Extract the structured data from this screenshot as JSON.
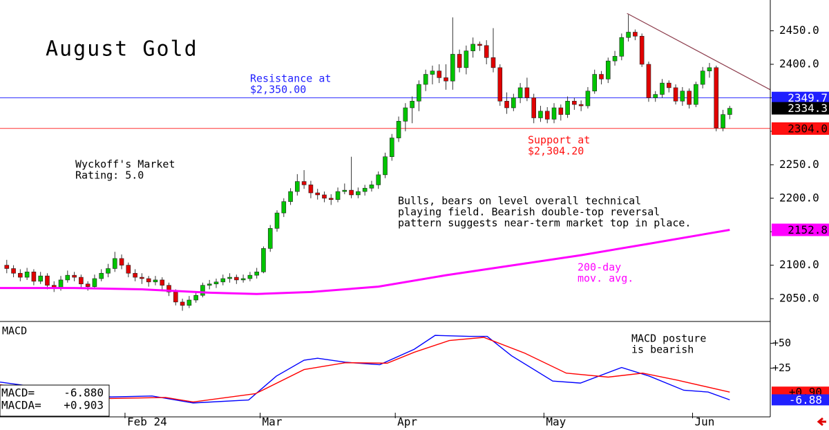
{
  "chart_data": {
    "type": "candlestick",
    "title": "August Gold",
    "xlim": [
      -1,
      113
    ],
    "xticks": [
      {
        "value": 17.5,
        "label": "Feb 24"
      },
      {
        "value": 37.5,
        "label": "Mar"
      },
      {
        "value": 57.5,
        "label": "Apr"
      },
      {
        "value": 79.5,
        "label": "May"
      },
      {
        "value": 101.5,
        "label": "Jun"
      }
    ],
    "ylim": [
      2016,
      2496
    ],
    "yticks": [
      {
        "value": 2050,
        "label": "2050.0"
      },
      {
        "value": 2100,
        "label": "2100.0"
      },
      {
        "value": 2150,
        "label": "2150.0"
      },
      {
        "value": 2200,
        "label": "2200.0"
      },
      {
        "value": 2250,
        "label": "2250.0"
      },
      {
        "value": 2300,
        "label": "2300.0"
      },
      {
        "value": 2350,
        "label": "2350.0"
      },
      {
        "value": 2400,
        "label": "2400.0"
      },
      {
        "value": 2450,
        "label": "2450.0"
      }
    ],
    "up_color": "#00c400",
    "down_color": "#e00000",
    "ohlc": [
      [
        2100,
        2108,
        2088,
        2095
      ],
      [
        2095,
        2100,
        2082,
        2088
      ],
      [
        2088,
        2094,
        2076,
        2082
      ],
      [
        2082,
        2096,
        2078,
        2090
      ],
      [
        2090,
        2094,
        2070,
        2076
      ],
      [
        2076,
        2090,
        2072,
        2084
      ],
      [
        2084,
        2088,
        2064,
        2070
      ],
      [
        2070,
        2076,
        2060,
        2065
      ],
      [
        2065,
        2084,
        2062,
        2078
      ],
      [
        2078,
        2092,
        2074,
        2085
      ],
      [
        2085,
        2090,
        2076,
        2082
      ],
      [
        2082,
        2086,
        2066,
        2072
      ],
      [
        2072,
        2076,
        2062,
        2068
      ],
      [
        2068,
        2086,
        2064,
        2080
      ],
      [
        2080,
        2094,
        2076,
        2088
      ],
      [
        2088,
        2102,
        2082,
        2095
      ],
      [
        2095,
        2120,
        2090,
        2110
      ],
      [
        2110,
        2116,
        2094,
        2100
      ],
      [
        2100,
        2104,
        2082,
        2088
      ],
      [
        2088,
        2094,
        2076,
        2082
      ],
      [
        2082,
        2088,
        2072,
        2080
      ],
      [
        2080,
        2084,
        2068,
        2075
      ],
      [
        2075,
        2084,
        2070,
        2078
      ],
      [
        2078,
        2082,
        2064,
        2070
      ],
      [
        2070,
        2074,
        2054,
        2060
      ],
      [
        2060,
        2064,
        2040,
        2045
      ],
      [
        2045,
        2050,
        2032,
        2040
      ],
      [
        2040,
        2054,
        2036,
        2048
      ],
      [
        2048,
        2060,
        2044,
        2055
      ],
      [
        2055,
        2074,
        2052,
        2070
      ],
      [
        2070,
        2078,
        2064,
        2072
      ],
      [
        2072,
        2080,
        2066,
        2075
      ],
      [
        2075,
        2086,
        2070,
        2080
      ],
      [
        2080,
        2088,
        2074,
        2082
      ],
      [
        2082,
        2086,
        2072,
        2078
      ],
      [
        2078,
        2086,
        2074,
        2080
      ],
      [
        2080,
        2090,
        2076,
        2085
      ],
      [
        2085,
        2096,
        2080,
        2090
      ],
      [
        2090,
        2128,
        2088,
        2125
      ],
      [
        2125,
        2160,
        2120,
        2155
      ],
      [
        2155,
        2182,
        2150,
        2178
      ],
      [
        2178,
        2200,
        2172,
        2195
      ],
      [
        2195,
        2215,
        2190,
        2210
      ],
      [
        2210,
        2236,
        2204,
        2225
      ],
      [
        2225,
        2242,
        2214,
        2220
      ],
      [
        2220,
        2226,
        2200,
        2208
      ],
      [
        2208,
        2214,
        2198,
        2205
      ],
      [
        2205,
        2210,
        2194,
        2200
      ],
      [
        2200,
        2206,
        2190,
        2198
      ],
      [
        2198,
        2216,
        2194,
        2210
      ],
      [
        2210,
        2222,
        2206,
        2212
      ],
      [
        2212,
        2262,
        2200,
        2205
      ],
      [
        2205,
        2216,
        2200,
        2210
      ],
      [
        2210,
        2220,
        2204,
        2215
      ],
      [
        2215,
        2226,
        2210,
        2220
      ],
      [
        2220,
        2240,
        2214,
        2235
      ],
      [
        2235,
        2268,
        2230,
        2262
      ],
      [
        2262,
        2296,
        2256,
        2290
      ],
      [
        2290,
        2322,
        2284,
        2315
      ],
      [
        2315,
        2342,
        2300,
        2335
      ],
      [
        2335,
        2352,
        2312,
        2345
      ],
      [
        2345,
        2376,
        2330,
        2370
      ],
      [
        2370,
        2392,
        2360,
        2385
      ],
      [
        2385,
        2398,
        2370,
        2390
      ],
      [
        2390,
        2400,
        2372,
        2380
      ],
      [
        2380,
        2400,
        2362,
        2375
      ],
      [
        2375,
        2470,
        2362,
        2415
      ],
      [
        2415,
        2422,
        2388,
        2395
      ],
      [
        2395,
        2428,
        2385,
        2420
      ],
      [
        2420,
        2440,
        2410,
        2430
      ],
      [
        2430,
        2434,
        2420,
        2428
      ],
      [
        2428,
        2436,
        2400,
        2410
      ],
      [
        2410,
        2454,
        2388,
        2395
      ],
      [
        2395,
        2400,
        2338,
        2345
      ],
      [
        2345,
        2358,
        2326,
        2335
      ],
      [
        2335,
        2356,
        2330,
        2350
      ],
      [
        2350,
        2372,
        2342,
        2365
      ],
      [
        2365,
        2380,
        2345,
        2350
      ],
      [
        2350,
        2356,
        2312,
        2320
      ],
      [
        2320,
        2338,
        2314,
        2330
      ],
      [
        2330,
        2336,
        2312,
        2318
      ],
      [
        2318,
        2342,
        2312,
        2335
      ],
      [
        2335,
        2340,
        2316,
        2325
      ],
      [
        2325,
        2352,
        2320,
        2345
      ],
      [
        2345,
        2350,
        2332,
        2340
      ],
      [
        2340,
        2346,
        2330,
        2338
      ],
      [
        2338,
        2366,
        2334,
        2360
      ],
      [
        2360,
        2392,
        2356,
        2385
      ],
      [
        2385,
        2390,
        2370,
        2378
      ],
      [
        2378,
        2410,
        2372,
        2405
      ],
      [
        2405,
        2420,
        2398,
        2412
      ],
      [
        2412,
        2446,
        2406,
        2440
      ],
      [
        2440,
        2474,
        2434,
        2448
      ],
      [
        2448,
        2452,
        2436,
        2442
      ],
      [
        2442,
        2446,
        2396,
        2400
      ],
      [
        2400,
        2404,
        2344,
        2350
      ],
      [
        2350,
        2360,
        2344,
        2355
      ],
      [
        2355,
        2378,
        2350,
        2372
      ],
      [
        2372,
        2376,
        2358,
        2365
      ],
      [
        2365,
        2370,
        2340,
        2345
      ],
      [
        2345,
        2366,
        2338,
        2360
      ],
      [
        2360,
        2364,
        2334,
        2340
      ],
      [
        2340,
        2374,
        2336,
        2370
      ],
      [
        2370,
        2396,
        2364,
        2390
      ],
      [
        2390,
        2402,
        2380,
        2395
      ],
      [
        2395,
        2398,
        2300,
        2305
      ],
      [
        2305,
        2332,
        2300,
        2325
      ],
      [
        2325,
        2338,
        2318,
        2334.3
      ]
    ],
    "moving_average": {
      "color": "#ff00ff",
      "x": [
        -1,
        10,
        20,
        30,
        37,
        45,
        55,
        65,
        75,
        85,
        95,
        107
      ],
      "values": [
        2066,
        2066,
        2064,
        2059,
        2057,
        2060,
        2068,
        2085,
        2100,
        2115,
        2132,
        2152.8
      ]
    },
    "levels": [
      {
        "value": 2350,
        "color": "#3030ff"
      },
      {
        "value": 2304.2,
        "color": "#ff3030"
      }
    ],
    "trendline": {
      "color": "#8b3a4a",
      "x": [
        91.8,
        113
      ],
      "values": [
        2476,
        2362
      ]
    },
    "price_tags": [
      {
        "value": 2349.7,
        "color": "#2020ff",
        "text_color": "#ffffff"
      },
      {
        "value": 2334.3,
        "color": "#000000",
        "text_color": "#ffffff"
      },
      {
        "value": 2304,
        "label": "2304.0",
        "color": "#ff1010",
        "text_color": "#000000"
      },
      {
        "value": 2152.8,
        "color": "#ff00ff",
        "text_color": "#000000"
      }
    ],
    "annotations": {
      "resistance": [
        "Resistance at",
        "$2,350.00"
      ],
      "support": [
        "Support at",
        "$2,304.20"
      ],
      "rating": [
        "Wyckoff's Market",
        "Rating: 5.0"
      ],
      "comment": [
        "Bulls, bears on level overall technical",
        "playing field. Bearish double-top reversal",
        "pattern suggests near-term market top in place."
      ],
      "ma": [
        "200-day",
        "mov. avg."
      ]
    },
    "macd": {
      "title": "MACD",
      "ylim": [
        -24,
        72
      ],
      "yticks": [
        {
          "value": 50,
          "label": "+50"
        },
        {
          "value": 25,
          "label": "+25"
        }
      ],
      "series": [
        {
          "name": "MACD",
          "color": "#0000ff",
          "x": [
            -1,
            15.4,
            21.5,
            27.6,
            35.8,
            39.9,
            44,
            46,
            50.1,
            55.2,
            60.3,
            63.4,
            68.5,
            71.1,
            74.7,
            80.8,
            84.9,
            91,
            95.1,
            100.2,
            103.8,
            107
          ],
          "values": [
            11,
            -4,
            -3,
            -10,
            -7,
            17,
            33,
            35,
            31,
            28.5,
            44,
            58,
            57,
            57,
            37.5,
            12,
            10,
            25.7,
            17,
            2.8,
            1,
            -6.88
          ]
        },
        {
          "name": "MACDA",
          "color": "#ff0000",
          "x": [
            -1,
            15.4,
            23.5,
            27.6,
            36.8,
            44,
            50.1,
            56.3,
            60.3,
            65.5,
            70.6,
            76.7,
            82.8,
            89,
            94.1,
            99.2,
            107
          ],
          "values": [
            8.3,
            -5.5,
            -4.5,
            -9,
            -0.7,
            23.6,
            30.5,
            30,
            41,
            52.8,
            56,
            40,
            20,
            16,
            20,
            13,
            0.903
          ]
        }
      ],
      "tags": [
        {
          "value": 0.9,
          "label": "+0.90",
          "color": "#ff1010",
          "text_color": "#000000"
        },
        {
          "value": -6.88,
          "label": "-6.88",
          "color": "#2020ff",
          "text_color": "#ffffff"
        }
      ],
      "readout": [
        {
          "name": "MACD=",
          "value": -6.88,
          "label": "-6.880"
        },
        {
          "name": "MACDA=",
          "value": 0.903,
          "label": "+0.903"
        }
      ],
      "annotation": [
        "MACD posture",
        "is bearish"
      ]
    }
  }
}
